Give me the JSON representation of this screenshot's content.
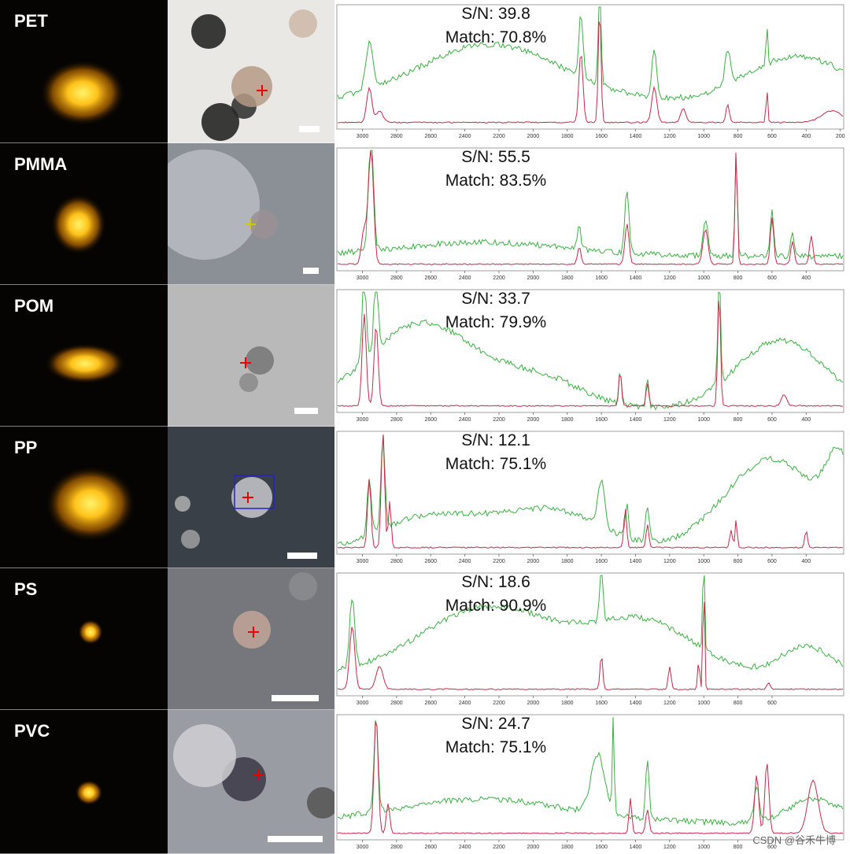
{
  "panels": [
    {
      "label": "PET",
      "signal_to_noise": "S/N: 39.8",
      "match": "Match: 70.8%",
      "xlim": [
        3150,
        180
      ],
      "xticks": [
        3000,
        2800,
        2600,
        2400,
        2200,
        2000,
        1800,
        1600,
        1400,
        1200,
        1000,
        800,
        600,
        400,
        200
      ]
    },
    {
      "label": "PMMA",
      "signal_to_noise": "S/N: 55.5",
      "match": "Match: 83.5%",
      "xlim": [
        3150,
        180
      ],
      "xticks": [
        3000,
        2800,
        2600,
        2400,
        2200,
        2000,
        1800,
        1600,
        1400,
        1200,
        1000,
        800,
        600,
        400
      ]
    },
    {
      "label": "POM",
      "signal_to_noise": "S/N: 33.7",
      "match": "Match: 79.9%",
      "xlim": [
        3150,
        180
      ],
      "xticks": [
        3000,
        2800,
        2600,
        2400,
        2200,
        2000,
        1800,
        1600,
        1400,
        1200,
        1000,
        800,
        600,
        400
      ]
    },
    {
      "label": "PP",
      "signal_to_noise": "S/N: 12.1",
      "match": "Match: 75.1%",
      "xlim": [
        3150,
        180
      ],
      "xticks": [
        3000,
        2800,
        2600,
        2400,
        2200,
        2000,
        1800,
        1600,
        1400,
        1200,
        1000,
        800,
        600,
        400
      ]
    },
    {
      "label": "PS",
      "signal_to_noise": "S/N: 18.6",
      "match": "Match: 90.9%",
      "xlim": [
        3150,
        180
      ],
      "xticks": [
        3000,
        2800,
        2600,
        2400,
        2200,
        2000,
        1800,
        1600,
        1400,
        1200,
        1000,
        800,
        600
      ]
    },
    {
      "label": "PVC",
      "signal_to_noise": "S/N: 24.7",
      "match": "Match: 75.1%",
      "xlim": [
        3150,
        180
      ],
      "xticks": [
        3000,
        2800,
        2600,
        2400,
        2200,
        2000,
        1800,
        1600,
        1400,
        1200,
        1000,
        800,
        600
      ]
    }
  ],
  "watermark": "CSDN @谷禾牛博"
}
